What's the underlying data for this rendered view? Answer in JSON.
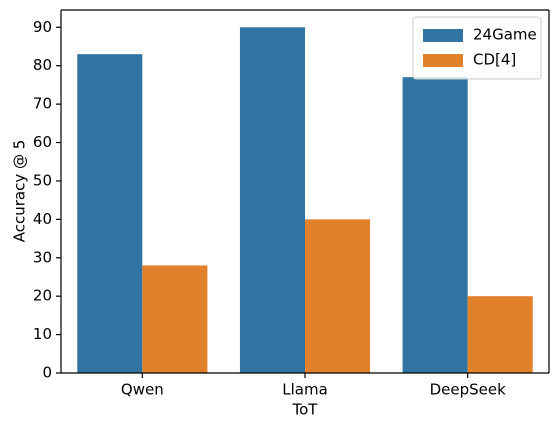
{
  "chart_data": {
    "type": "bar",
    "x_label": "ToT",
    "y_label": "Accuracy @ 5",
    "categories": [
      "Qwen",
      "Llama",
      "DeepSeek"
    ],
    "series": [
      {
        "name": "24Game",
        "color": "#3274a1",
        "values": [
          83,
          90,
          77
        ]
      },
      {
        "name": "CD[4]",
        "color": "#e1812c",
        "values": [
          28,
          40,
          20
        ]
      }
    ],
    "ylim": [
      0,
      94.5
    ],
    "yticks": [
      0,
      10,
      20,
      30,
      40,
      50,
      60,
      70,
      80,
      90
    ],
    "grid": false,
    "legend": "upper right"
  }
}
